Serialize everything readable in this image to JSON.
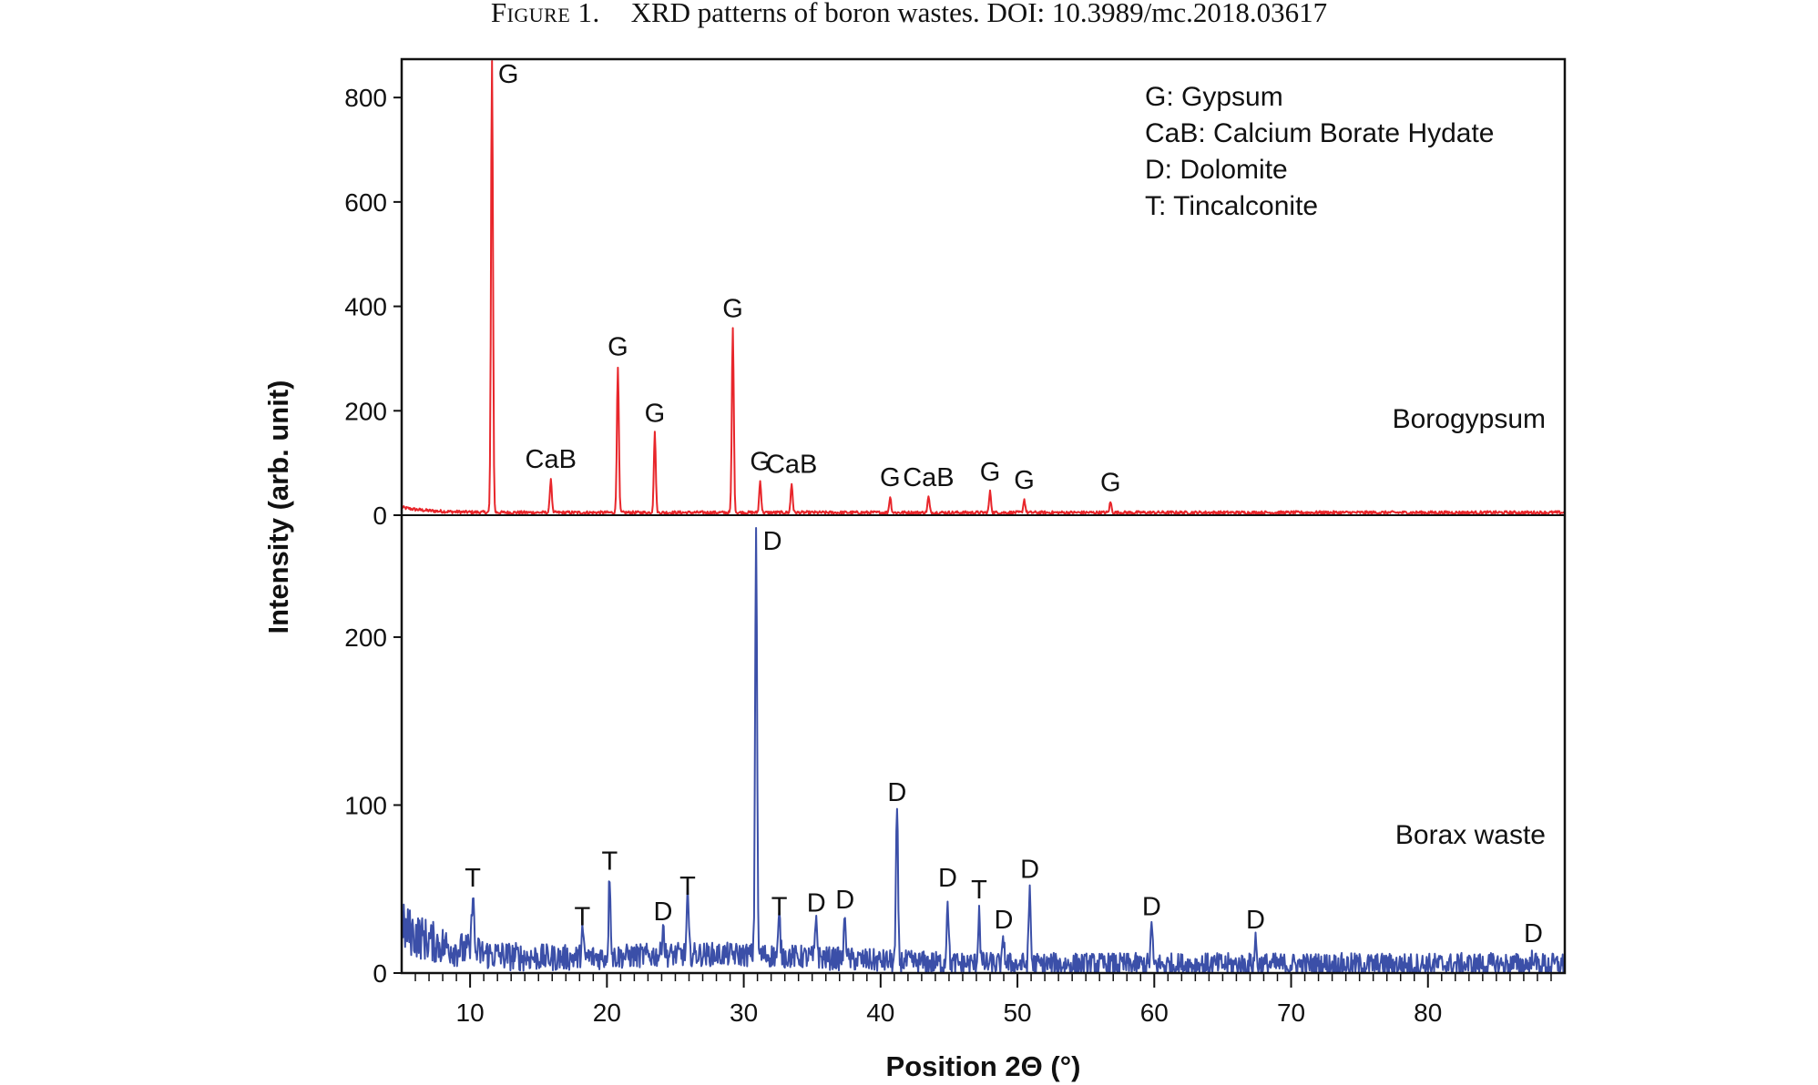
{
  "caption": {
    "label": "Figure 1.",
    "text": "XRD patterns of boron wastes. DOI: 10.3989/mc.2018.03617"
  },
  "chart_data": {
    "type": "line",
    "xlabel": "Position 2Θ (°)",
    "ylabel": "Intensity (arb. unit)",
    "xlim": [
      5,
      90
    ],
    "x_ticks": [
      10,
      20,
      30,
      40,
      50,
      60,
      70,
      80
    ],
    "x_tick_labels": [
      "10",
      "20",
      "30",
      "40",
      "50",
      "60",
      "70",
      "80"
    ],
    "grid": false,
    "legend_position": "top-right",
    "legend": [
      "G: Gypsum",
      "CaB: Calcium Borate Hydate",
      "D: Dolomite",
      "T: Tincalconite"
    ],
    "series": [
      {
        "name": "Borogypsum",
        "color": "#e8262b",
        "panel": "top",
        "ylim": [
          0,
          870
        ],
        "y_ticks": [
          0,
          200,
          400,
          600,
          800
        ],
        "y_tick_labels": [
          "0",
          "200",
          "400",
          "600",
          "800"
        ],
        "baseline": 5,
        "peaks": [
          {
            "x": 11.6,
            "y": 870,
            "label": "G"
          },
          {
            "x": 15.9,
            "y": 70,
            "label": "CaB"
          },
          {
            "x": 20.8,
            "y": 285,
            "label": "G"
          },
          {
            "x": 23.5,
            "y": 158,
            "label": "G"
          },
          {
            "x": 29.2,
            "y": 358,
            "label": "G"
          },
          {
            "x": 31.2,
            "y": 65,
            "label": "G"
          },
          {
            "x": 33.5,
            "y": 60,
            "label": "CaB"
          },
          {
            "x": 40.7,
            "y": 35,
            "label": "G"
          },
          {
            "x": 43.5,
            "y": 35,
            "label": "CaB"
          },
          {
            "x": 48.0,
            "y": 45,
            "label": "G"
          },
          {
            "x": 50.5,
            "y": 30,
            "label": "G"
          },
          {
            "x": 56.8,
            "y": 25,
            "label": "G"
          }
        ]
      },
      {
        "name": "Borax waste",
        "color": "#3b4fa8",
        "panel": "bottom",
        "ylim": [
          0,
          265
        ],
        "y_ticks": [
          0,
          100,
          200
        ],
        "y_tick_labels": [
          "0",
          "100",
          "200"
        ],
        "baseline": 5,
        "peaks": [
          {
            "x": 10.2,
            "y": 45,
            "label": "T"
          },
          {
            "x": 18.2,
            "y": 22,
            "label": "T"
          },
          {
            "x": 20.2,
            "y": 55,
            "label": "T"
          },
          {
            "x": 24.1,
            "y": 25,
            "label": "D"
          },
          {
            "x": 25.9,
            "y": 40,
            "label": "T"
          },
          {
            "x": 30.9,
            "y": 262,
            "label": "D"
          },
          {
            "x": 32.6,
            "y": 28,
            "label": "T"
          },
          {
            "x": 35.3,
            "y": 30,
            "label": "D"
          },
          {
            "x": 37.4,
            "y": 32,
            "label": "D"
          },
          {
            "x": 41.2,
            "y": 96,
            "label": "D"
          },
          {
            "x": 44.9,
            "y": 45,
            "label": "D"
          },
          {
            "x": 47.2,
            "y": 38,
            "label": "T"
          },
          {
            "x": 49.0,
            "y": 20,
            "label": "D"
          },
          {
            "x": 50.9,
            "y": 50,
            "label": "D"
          },
          {
            "x": 59.8,
            "y": 28,
            "label": "D"
          },
          {
            "x": 67.4,
            "y": 20,
            "label": "D"
          },
          {
            "x": 87.7,
            "y": 12,
            "label": "D"
          }
        ]
      }
    ]
  }
}
